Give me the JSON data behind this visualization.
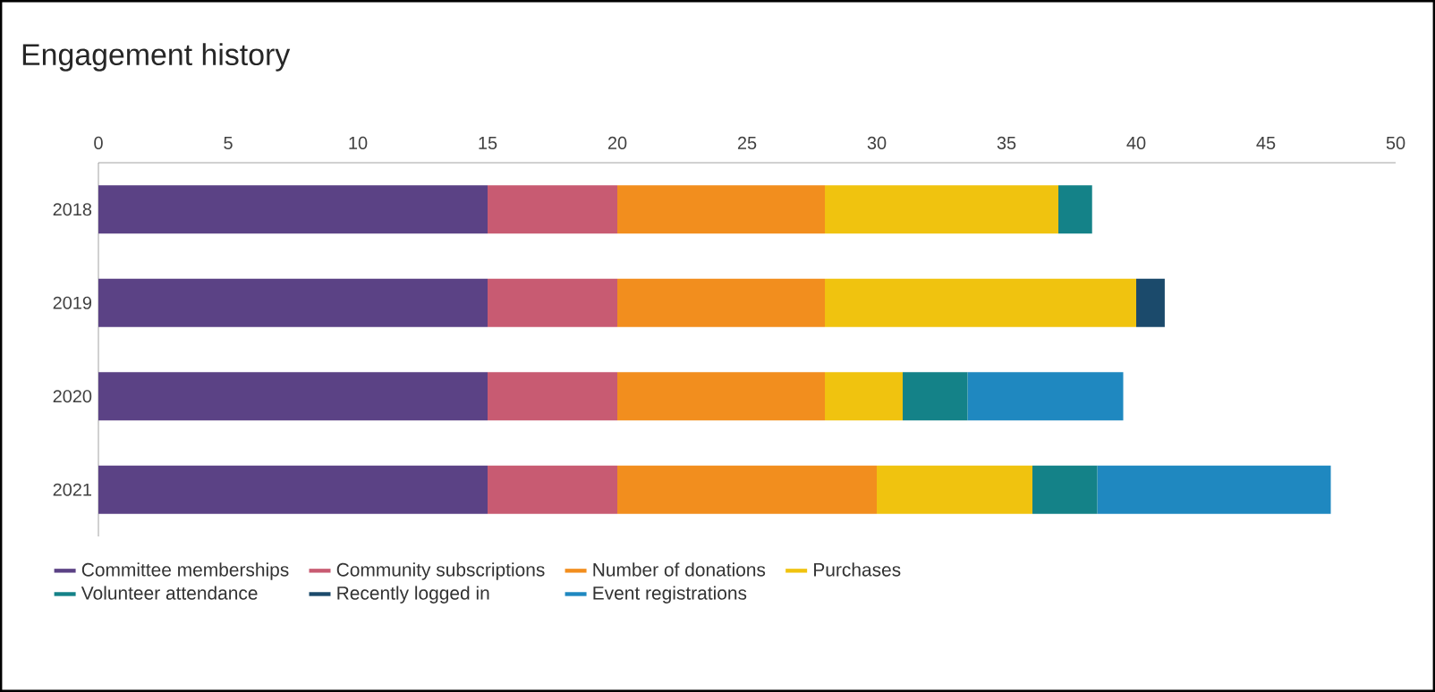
{
  "chart_data": {
    "type": "bar",
    "title": "Engagement history",
    "orientation": "horizontal",
    "stacked": true,
    "categories": [
      "2018",
      "2019",
      "2020",
      "2021"
    ],
    "series": [
      {
        "name": "Committee memberships",
        "color": "#5b4285",
        "values": [
          15,
          15,
          15,
          15
        ]
      },
      {
        "name": "Community subscriptions",
        "color": "#c85b72",
        "values": [
          5,
          5,
          5,
          5
        ]
      },
      {
        "name": "Number of donations",
        "color": "#f28e1e",
        "values": [
          8,
          8,
          8,
          10
        ]
      },
      {
        "name": "Purchases",
        "color": "#f0c30f",
        "values": [
          9,
          12,
          3,
          6
        ]
      },
      {
        "name": "Volunteer attendance",
        "color": "#148288",
        "values": [
          1.3,
          null,
          2.5,
          2.5
        ]
      },
      {
        "name": "Recently logged in",
        "color": "#1b4a6b",
        "values": [
          null,
          1.1,
          null,
          null
        ]
      },
      {
        "name": "Event registrations",
        "color": "#1f88c0",
        "values": [
          null,
          null,
          6,
          9
        ]
      }
    ],
    "xlim": [
      0,
      50
    ],
    "xticks": [
      0,
      5,
      10,
      15,
      20,
      25,
      30,
      35,
      40,
      45,
      50
    ],
    "legend": "bottom"
  }
}
